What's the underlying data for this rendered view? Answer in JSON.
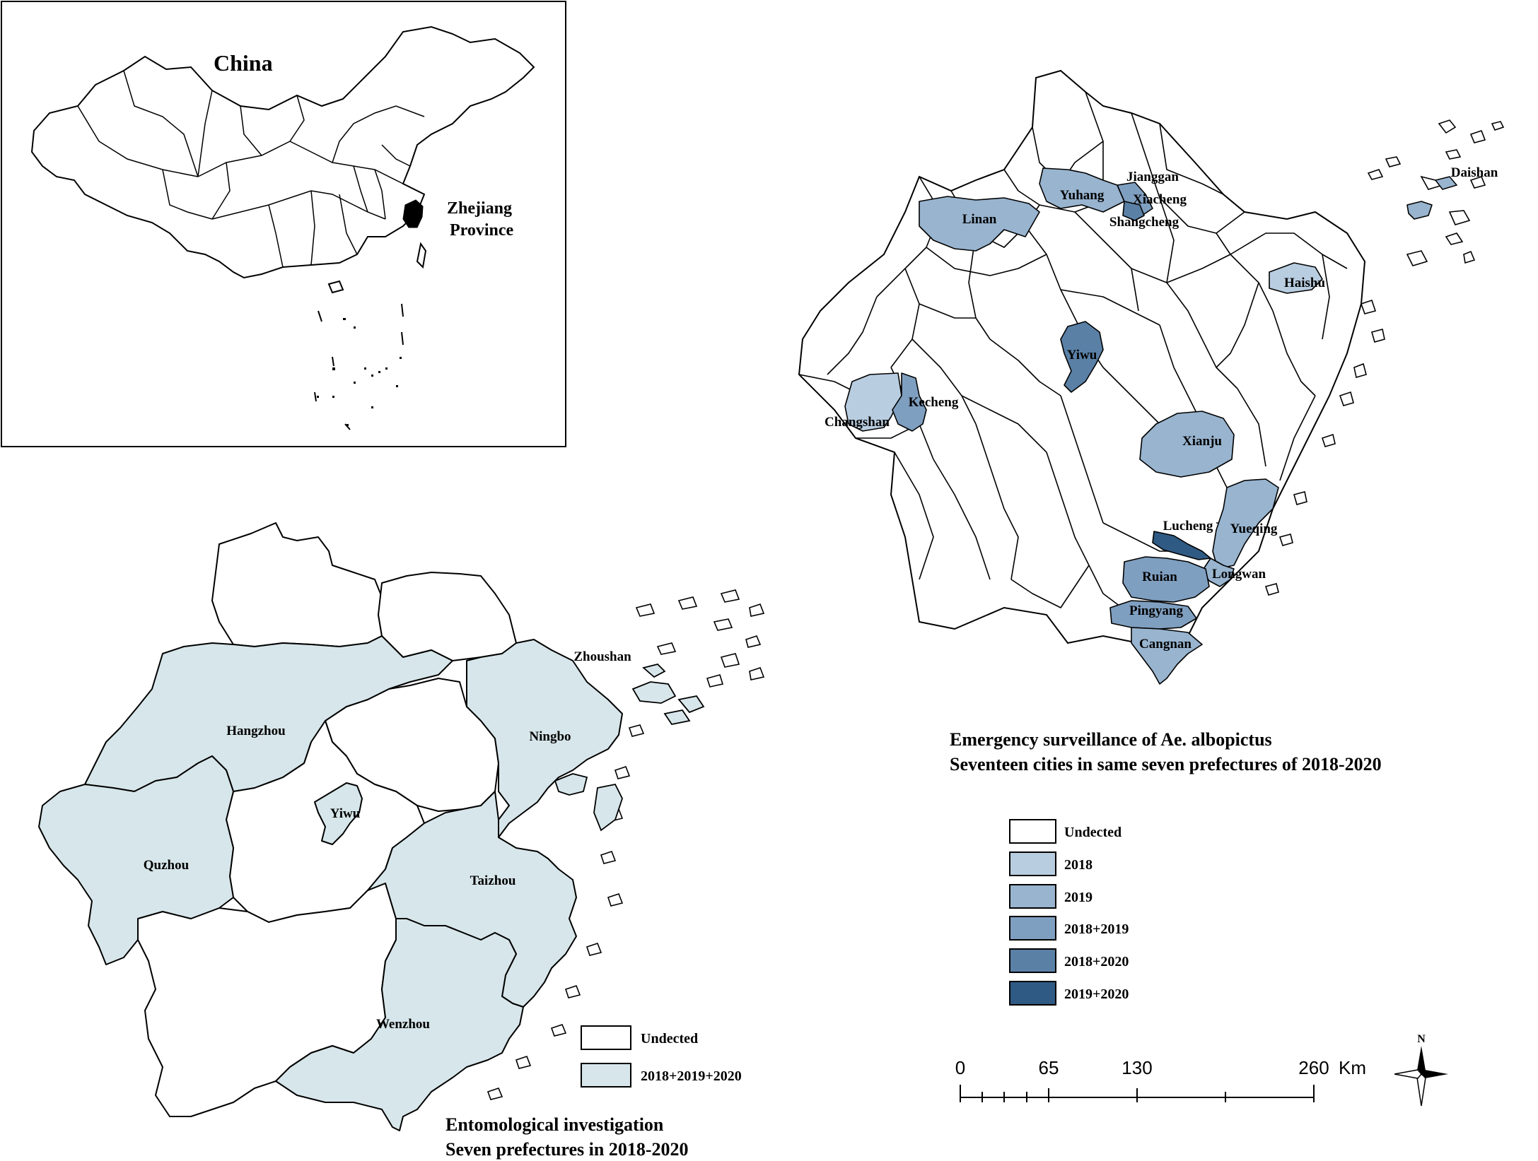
{
  "colors": {
    "undetected": "#ffffff",
    "y2018": "#b8cde0",
    "y2019": "#98b4cf",
    "y2018_2019": "#7f9fc0",
    "y2018_2020": "#5a80a6",
    "y2019_2020": "#2f5a83",
    "all_years": "#d7e6ea",
    "zhejiang_inset": "#000000"
  },
  "inset": {
    "country_label": "China",
    "province_label_line1": "Zhejiang",
    "province_label_line2": "Province"
  },
  "map_left": {
    "prefectures": {
      "hangzhou": "Hangzhou",
      "ningbo": "Ningbo",
      "zhoushan": "Zhoushan",
      "yiwu": "Yiwu",
      "quzhou": "Quzhou",
      "taizhou": "Taizhou",
      "wenzhou": "Wenzhou"
    },
    "legend": {
      "undetected": "Undected",
      "all_years": "2018+2019+2020"
    },
    "caption_line1": "Entomological investigation",
    "caption_line2": "Seven prefectures in 2018-2020"
  },
  "map_right": {
    "cities": {
      "jianggan": "Jianggan",
      "yuhang": "Yuhang",
      "xiacheng": "Xiacheng",
      "shangcheng": "Shangcheng",
      "linan": "Linan",
      "daishan": "Daishan",
      "haishu": "Haishu",
      "yiwu": "Yiwu",
      "kecheng": "Kecheng",
      "changshan": "Changshan",
      "xianju": "Xianju",
      "lucheng": "Lucheng",
      "yueqing": "Yueqing",
      "longwan": "Longwan",
      "ruian": "Ruian",
      "pingyang": "Pingyang",
      "cangnan": "Cangnan"
    },
    "caption_line1": "Emergency surveillance of Ae. albopictus",
    "caption_line2": "Seventeen cities in same seven prefectures of 2018-2020",
    "legend": {
      "undetected": "Undected",
      "y2018": "2018",
      "y2019": "2019",
      "y2018_2019": "2018+2019",
      "y2018_2020": "2018+2020",
      "y2019_2020": "2019+2020"
    }
  },
  "scale_bar": {
    "ticks": [
      "0",
      "65",
      "130",
      "260"
    ],
    "unit": "Km"
  },
  "north_arrow": {
    "label": "N"
  }
}
